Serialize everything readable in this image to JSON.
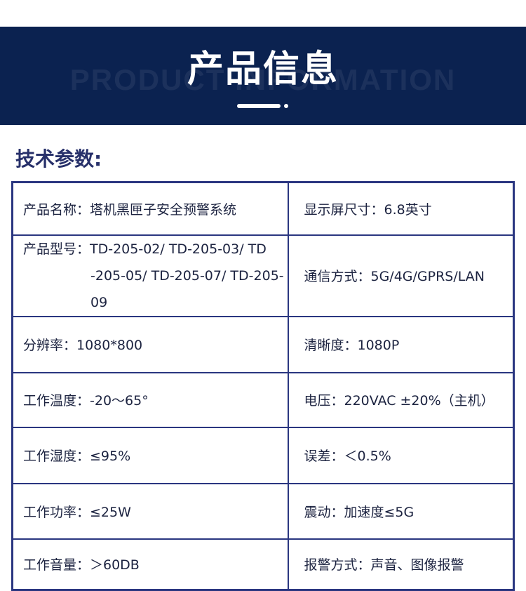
{
  "banner": {
    "title": "产品信息",
    "watermark": "PRODUCT INFORMATION"
  },
  "section_title": "技术参数:",
  "specs": [
    {
      "left": "产品名称：塔机黑匣子安全预警系统",
      "right": "显示屏尺寸：6.8英寸"
    },
    {
      "left": "产品型号：TD-205-02/ TD-205-03/ TD",
      "left_cont": "-205-05/ TD-205-07/ TD-205-09",
      "right": "通信方式：5G/4G/GPRS/LAN"
    },
    {
      "left": "分辨率：1080*800",
      "right": "清晰度：1080P"
    },
    {
      "left": "工作温度：-20～65°",
      "right": "电压：220VAC ±20%（主机）"
    },
    {
      "left": "工作湿度：≤95%",
      "right": "误差：＜0.5%"
    },
    {
      "left": "工作功率：≤25W",
      "right": "震动：加速度≤5G"
    },
    {
      "left": "工作音量：＞60DB",
      "right": "报警方式：声音、图像报警"
    }
  ]
}
